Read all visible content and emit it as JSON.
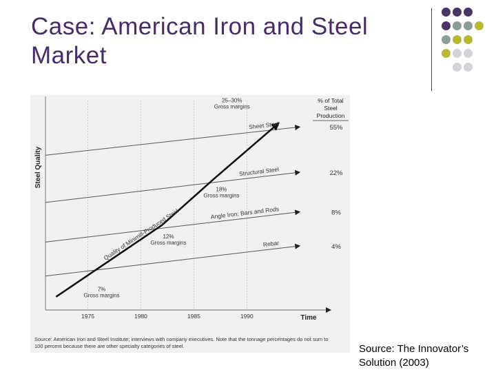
{
  "slide": {
    "title": "Case: American Iron and Steel Market",
    "caption": "Source: The Innovator’s Solution (2003)",
    "colors": {
      "title": "#4a2a6a",
      "dot_purple": "#4a3560",
      "dot_slate": "#8a9ea0",
      "dot_olive": "#b8b832",
      "dot_lavender": "#d3d3de"
    },
    "decoration": "dot-grid"
  },
  "chart_data": {
    "type": "line",
    "title": "",
    "xlabel": "Time",
    "ylabel": "Steel Quality",
    "x_ticks": [
      "1975",
      "1980",
      "1985",
      "1990"
    ],
    "xlim": [
      1971,
      1997
    ],
    "ylim": [
      0,
      100
    ],
    "grid": true,
    "right_header": "% of Total Steel Production",
    "market_tiers": [
      {
        "name": "Rebar",
        "share": "4%",
        "start": [
          1971,
          18
        ],
        "end": [
          1995,
          34
        ]
      },
      {
        "name": "Angle Iron; Bars and Rods",
        "share": "8%",
        "start": [
          1971,
          36
        ],
        "end": [
          1995,
          52
        ]
      },
      {
        "name": "Structural Steel",
        "share": "22%",
        "start": [
          1971,
          57
        ],
        "end": [
          1995,
          73
        ]
      },
      {
        "name": "Sheet Steel",
        "share": "55%",
        "start": [
          1971,
          82
        ],
        "end": [
          1995,
          97
        ]
      }
    ],
    "minimill_trajectory": {
      "name": "Quality of Minimill-Produced Steel",
      "points": [
        [
          1972,
          7
        ],
        [
          1977,
          26
        ],
        [
          1982,
          45
        ],
        [
          1987,
          70
        ],
        [
          1993,
          99
        ]
      ]
    },
    "annotations": [
      {
        "text": [
          "7%",
          "Gross margins"
        ],
        "x": 1976.3,
        "y": 10
      },
      {
        "text": [
          "12%",
          "Gross margins"
        ],
        "x": 1982.6,
        "y": 38
      },
      {
        "text": [
          "18%",
          "Gross margins"
        ],
        "x": 1987.6,
        "y": 63
      },
      {
        "text": [
          "25–30%",
          "Gross margins"
        ],
        "x": 1988.6,
        "y": 110
      }
    ],
    "source": "Source: American Iron and Steel Institute; interviews with company executives. Note that the tonnage percentages do not sum to 100 percent because there are other specialty categories of steel."
  }
}
